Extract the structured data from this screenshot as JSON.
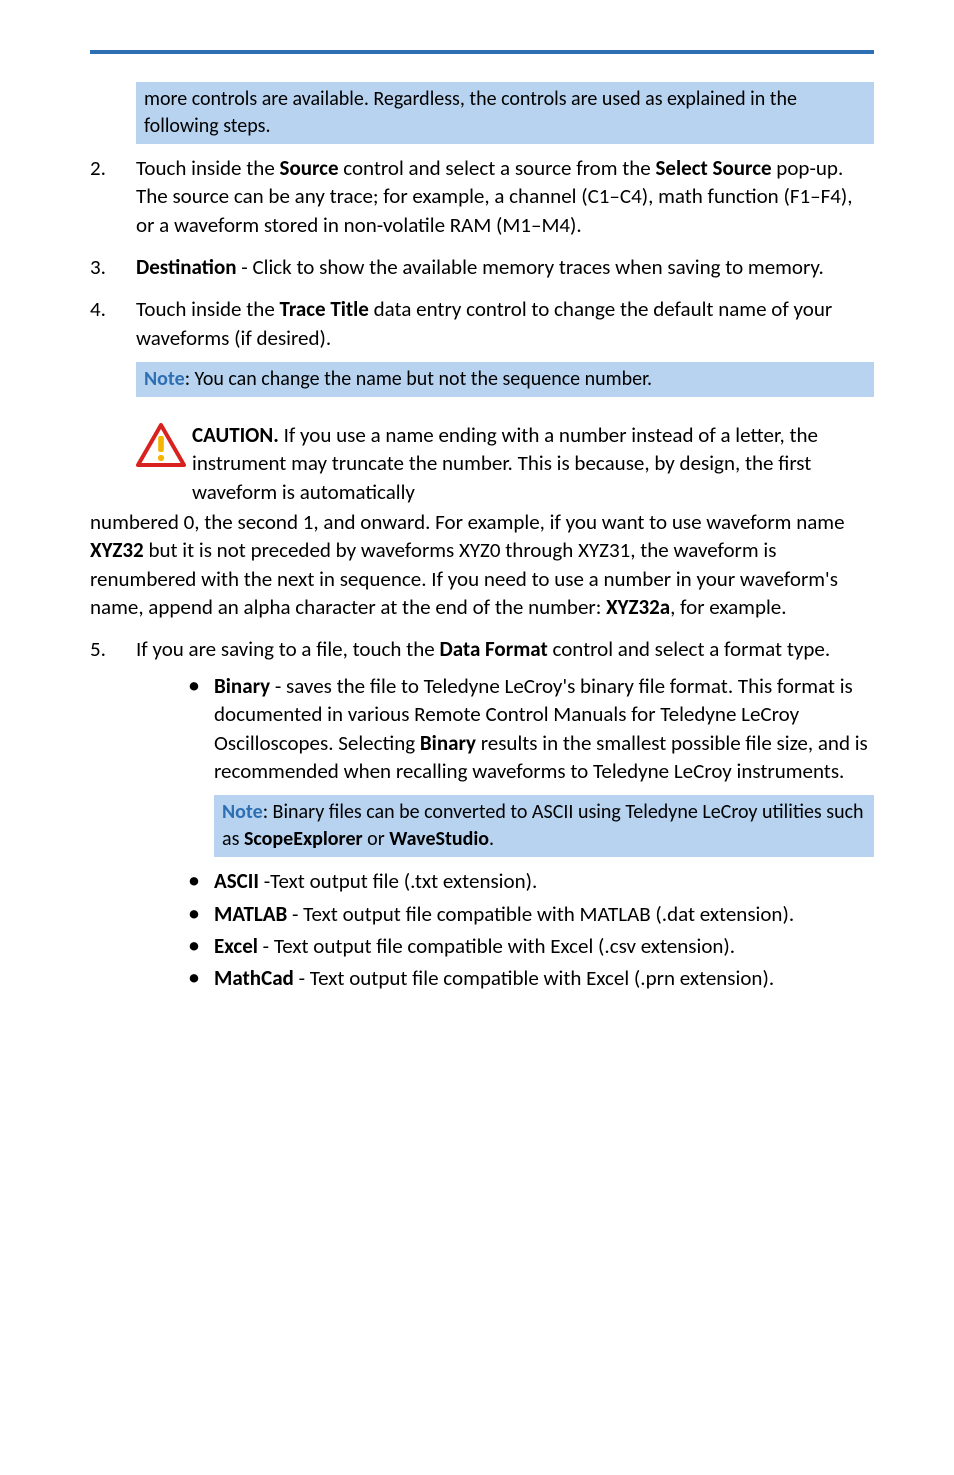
{
  "colors": {
    "rule": "#2e6fb4",
    "note_bg": "#b7d3ef",
    "note_label": "#2e6fb4",
    "caution_red": "#d8221f",
    "caution_yellow": "#f4b400",
    "text": "#000000",
    "background": "#ffffff"
  },
  "typography": {
    "body_fontsize_pt": 16,
    "note_fontsize_pt": 15,
    "font_family": "Calibri"
  },
  "top_note": {
    "text": "more controls are available. Regardless, the controls are used as explained in the following steps."
  },
  "items": [
    {
      "num": "2.",
      "html": "Touch inside the <b>Source</b> control and select a source from the <b>Select Source</b> pop-up. The source can be any trace; for example, a channel (C1–C4), math function (F1–F4), or a waveform stored in non-volatile RAM (M1–M4)."
    },
    {
      "num": "3.",
      "html": "<b>Destination</b> - Click to show the available memory traces when saving to memory."
    },
    {
      "num": "4.",
      "html": "Touch inside the <b>Trace Title</b> data entry control to change the default name of your waveforms (if desired)."
    },
    {
      "num": "5.",
      "html": "If you are saving to a file, touch the <b>Data Format</b> control and select a format type."
    }
  ],
  "item4_note": {
    "label": "Note",
    "text": ": You can change the name but not the sequence number."
  },
  "caution": {
    "label": "CAUTION.",
    "lead": " If you use a name ending with a number instead of a letter, the instrument may truncate the number. This is because, by design, the first waveform is automatically ",
    "cont_html": "numbered 0, the second 1, and onward. For example, if you want to use waveform name <b>XYZ32</b> but it is not preceded by waveforms XYZ0 through XYZ31, the waveform is renumbered with the next in sequence. If you need to use a number in your waveform's name, append an alpha character at the end of the number: <b>XYZ32a</b>, for example."
  },
  "formats": [
    {
      "html": "<b>Binary</b> - saves the file to Teledyne LeCroy's binary file format. This format is documented in various Remote Control Manuals for Teledyne LeCroy Oscilloscopes. Selecting <b>Binary</b> results in the smallest possible file size, and is recommended when recalling waveforms to Teledyne LeCroy instruments."
    },
    {
      "html": "<b>ASCII</b> -Text output file (.txt extension)."
    },
    {
      "html": "<b>MATLAB</b> - Text output file compatible with MATLAB (.dat extension)."
    },
    {
      "html": "<b>Excel</b> - Text output file compatible with Excel (.csv extension)."
    },
    {
      "html": "<b>MathCad</b> - Text output file compatible with Excel (.prn extension)."
    }
  ],
  "binary_note": {
    "label": "Note",
    "html": ": Binary files can be converted to ASCII using Teledyne LeCroy utilities such as <b>ScopeExplorer</b> or <b>WaveStudio</b>."
  }
}
